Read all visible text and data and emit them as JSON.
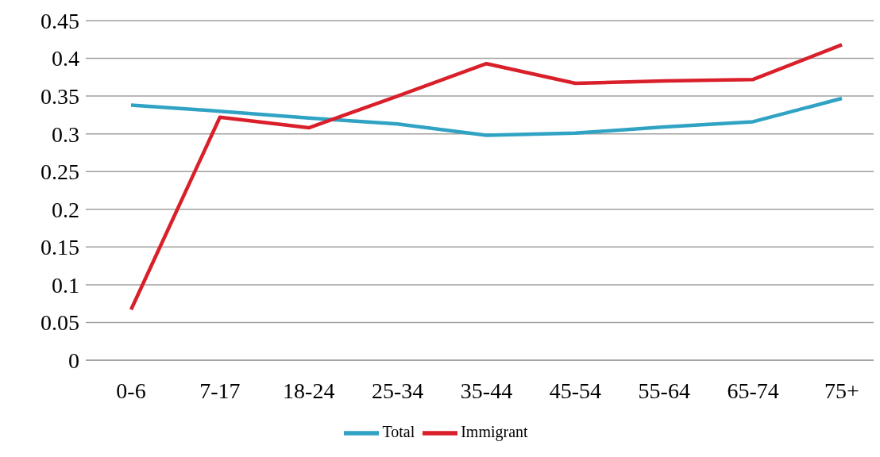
{
  "chart_data": {
    "type": "line",
    "categories": [
      "0-6",
      "7-17",
      "18-24",
      "25-34",
      "35-44",
      "45-54",
      "55-64",
      "65-74",
      "75+"
    ],
    "series": [
      {
        "name": "Total",
        "color": "#30a3c4",
        "values": [
          0.338,
          0.33,
          0.321,
          0.313,
          0.298,
          0.301,
          0.309,
          0.316,
          0.347
        ]
      },
      {
        "name": "Immigrant",
        "color": "#d91f2a",
        "values": [
          0.067,
          0.322,
          0.308,
          0.35,
          0.393,
          0.367,
          0.37,
          0.372,
          0.418
        ]
      }
    ],
    "ylim": [
      0,
      0.45
    ],
    "yticks": [
      0,
      0.05,
      0.1,
      0.15,
      0.2,
      0.25,
      0.3,
      0.35,
      0.4,
      0.45
    ],
    "grid": "y",
    "legend": "bottom",
    "marker": "none",
    "line_style": "solid"
  }
}
